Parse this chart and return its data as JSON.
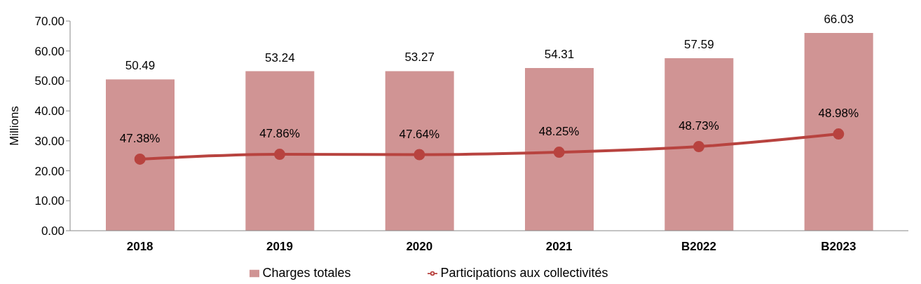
{
  "chart_data": {
    "type": "bar",
    "ylabel": "Millions",
    "categories": [
      "2018",
      "2019",
      "2020",
      "2021",
      "B2022",
      "B2023"
    ],
    "series": [
      {
        "name": "Charges totales",
        "color": "#d09494",
        "values": [
          50.49,
          53.24,
          53.27,
          54.31,
          57.59,
          66.03
        ],
        "value_labels": [
          "50.49",
          "53.24",
          "53.27",
          "54.31",
          "57.59",
          "66.03"
        ]
      },
      {
        "name": "Participations aux collectivités",
        "type": "line",
        "color": "#b8433f",
        "marker": "circle",
        "values": [
          23.9,
          25.5,
          25.4,
          26.2,
          28.1,
          32.3
        ]
      }
    ],
    "annotations": [
      {
        "text": "47.38%",
        "x": "2018",
        "y": 23.9
      },
      {
        "text": "47.86%",
        "x": "2019",
        "y": 25.5
      },
      {
        "text": "47.64%",
        "x": "2020",
        "y": 25.4
      },
      {
        "text": "48.25%",
        "x": "2021",
        "y": 26.2
      },
      {
        "text": "48.73%",
        "x": "B2022",
        "y": 28.1
      },
      {
        "text": "48.98%",
        "x": "B2023",
        "y": 32.3
      }
    ],
    "ylim": [
      0,
      70
    ],
    "yticks": [
      {
        "value": 0,
        "label": "0.00"
      },
      {
        "value": 10,
        "label": "10.00"
      },
      {
        "value": 20,
        "label": "20.00"
      },
      {
        "value": 30,
        "label": "30.00"
      },
      {
        "value": 40,
        "label": "40.00"
      },
      {
        "value": 50,
        "label": "50.00"
      },
      {
        "value": 60,
        "label": "60.00"
      },
      {
        "value": 70,
        "label": "70.00"
      }
    ],
    "grid": false,
    "legend": "bottom"
  }
}
